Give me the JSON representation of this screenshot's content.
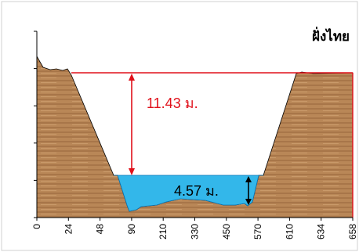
{
  "chart_data": {
    "type": "area",
    "title": "ฝั่งไทย",
    "xlabel": "",
    "ylabel": "",
    "categories": [
      "0",
      "24",
      "48",
      "90",
      "210",
      "330",
      "450",
      "570",
      "610",
      "634",
      "658"
    ],
    "grid": false,
    "legend": "none",
    "annotations": {
      "bank_height_label": "11.43 ม.",
      "water_depth_label": "4.57 ม."
    },
    "values": {
      "bank_height": 11.43,
      "water_depth": 4.57
    },
    "colors": {
      "ground": "#b98757",
      "ground_dark": "#8f6642",
      "water": "#33b7ea",
      "water_outline": "#0c78b8",
      "bank_line": "#e0101a",
      "axis": "#000000"
    }
  }
}
